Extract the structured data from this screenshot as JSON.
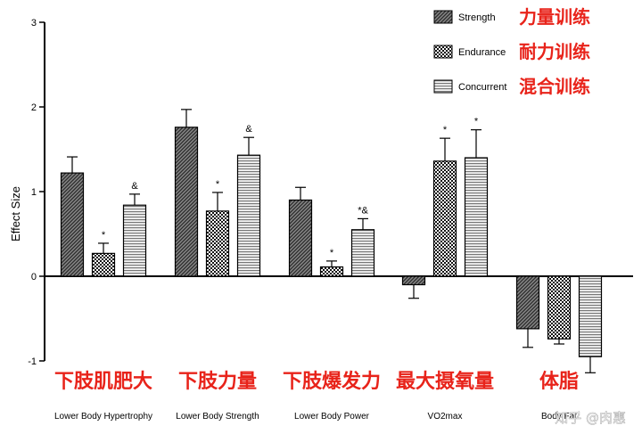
{
  "chart_data": {
    "type": "bar",
    "ylabel": "Effect Size",
    "ylim": [
      -1,
      3
    ],
    "yticks": [
      -1,
      0,
      1,
      2,
      3
    ],
    "grid": false,
    "legend_position": "top-right",
    "categories": [
      "Lower Body Hypertrophy",
      "Lower Body Strength",
      "Lower Body Power",
      "VO2max",
      "Body Fat"
    ],
    "category_labels_cn": [
      "下肢肌肥大",
      "下肢力量",
      "下肢爆发力",
      "最大摄氧量",
      "体脂"
    ],
    "series": [
      {
        "name": "Strength",
        "name_cn": "力量训练",
        "pattern": "dark-diagonal",
        "color": "#555555",
        "values": [
          1.22,
          1.76,
          0.9,
          -0.1,
          -0.62
        ],
        "errors": [
          0.19,
          0.21,
          0.15,
          0.16,
          0.22
        ],
        "annotations": [
          "",
          "",
          "",
          "",
          ""
        ]
      },
      {
        "name": "Endurance",
        "name_cn": "耐力训练",
        "pattern": "checker",
        "color": "#222222",
        "values": [
          0.27,
          0.77,
          0.11,
          1.36,
          -0.74
        ],
        "errors": [
          0.12,
          0.22,
          0.07,
          0.27,
          0.06
        ],
        "annotations": [
          "*",
          "*",
          "*",
          "*",
          ""
        ]
      },
      {
        "name": "Concurrent",
        "name_cn": "混合训练",
        "pattern": "horizontal-lines",
        "color": "#999999",
        "values": [
          0.84,
          1.43,
          0.55,
          1.4,
          -0.95
        ],
        "errors": [
          0.13,
          0.21,
          0.13,
          0.33,
          0.19
        ],
        "annotations": [
          "&",
          "&",
          "*&",
          "*",
          ""
        ]
      }
    ]
  },
  "watermark": "知乎 @肉惠"
}
